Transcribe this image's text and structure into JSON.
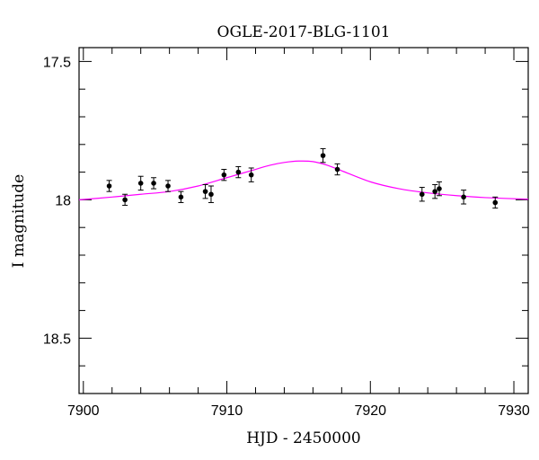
{
  "chart_data": {
    "type": "scatter",
    "title": "OGLE-2017-BLG-1101",
    "xlabel": "HJD - 2450000",
    "ylabel": "I magnitude",
    "xlim": [
      7899.7,
      7931.0
    ],
    "ylim": [
      18.7,
      17.45
    ],
    "y_inverted": true,
    "grid": false,
    "legend": "none",
    "x_ticks": [
      7900,
      7910,
      7920,
      7930
    ],
    "x_tick_labels": [
      "7900",
      "7910",
      "7920",
      "7930"
    ],
    "y_ticks": [
      17.5,
      18,
      18.5
    ],
    "y_tick_labels": [
      "17.5",
      "18",
      "18.5"
    ],
    "colors": {
      "model": "#ff00ff",
      "points": "#000000",
      "axes": "#000000"
    },
    "series": [
      {
        "kind": "points_with_errorbars",
        "x": [
          7901.8,
          7902.9,
          7904.0,
          7904.9,
          7905.9,
          7906.8,
          7908.5,
          7908.9,
          7909.8,
          7910.8,
          7911.7,
          7916.7,
          7917.7,
          7923.6,
          7924.5,
          7924.8,
          7926.5,
          7928.7
        ],
        "y": [
          17.95,
          18.0,
          17.94,
          17.94,
          17.95,
          17.99,
          17.97,
          17.98,
          17.91,
          17.9,
          17.91,
          17.84,
          17.89,
          17.98,
          17.97,
          17.96,
          17.99,
          18.01
        ],
        "err": [
          0.02,
          0.02,
          0.025,
          0.02,
          0.02,
          0.02,
          0.025,
          0.03,
          0.02,
          0.02,
          0.025,
          0.025,
          0.02,
          0.025,
          0.025,
          0.025,
          0.025,
          0.02
        ]
      },
      {
        "kind": "model_curve",
        "x": [
          7899.7,
          7902,
          7904,
          7906,
          7908,
          7910,
          7912,
          7913,
          7914,
          7915,
          7916,
          7917,
          7918,
          7920,
          7922,
          7924,
          7926,
          7928,
          7931
        ],
        "y": [
          18.0,
          17.99,
          17.98,
          17.97,
          17.95,
          17.92,
          17.89,
          17.875,
          17.865,
          17.86,
          17.862,
          17.875,
          17.895,
          17.935,
          17.96,
          17.975,
          17.985,
          17.992,
          17.998
        ]
      }
    ]
  }
}
